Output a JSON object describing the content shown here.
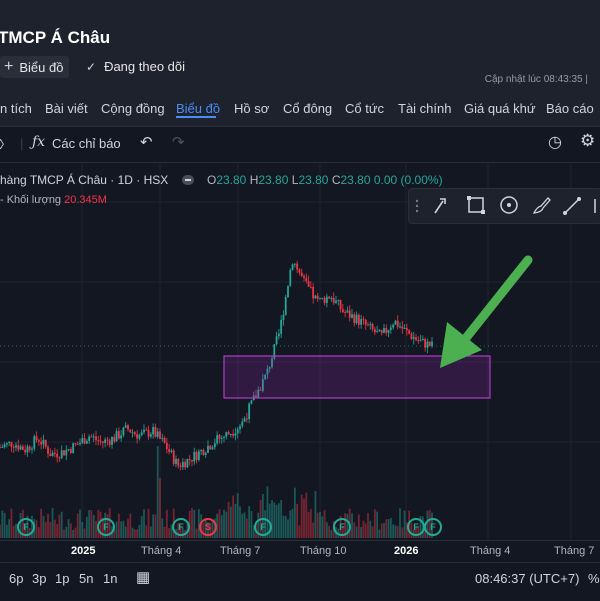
{
  "header": {
    "title": "TMCP Á Châu",
    "chart_button": "Biểu đồ",
    "follow_label": "Đang theo dõi",
    "updated_text": "Cập nhật lúc  08:43:35 |"
  },
  "tabs": [
    "n tích",
    "Bài viết",
    "Cộng đồng",
    "Biểu đồ",
    "Hồ sơ",
    "Cổ đông",
    "Cổ tức",
    "Tài chính",
    "Giá quá khứ",
    "Báo cáo"
  ],
  "toolbar": {
    "indicators_label": "Các chỉ báo"
  },
  "legend": {
    "symbol": "hàng TMCP Á Châu · 1D · HSX",
    "o_key": "O",
    "o_val": "23.80",
    "h_key": "H",
    "h_val": "23.80",
    "l_key": "L",
    "l_val": "23.80",
    "c_key": "C",
    "c_val": "23.80",
    "change": "0.00 (0.00%)",
    "volume_label": "- Khối lượng",
    "volume_value": "20.345M"
  },
  "time_axis": [
    "2025",
    "Tháng 4",
    "Tháng 7",
    "Tháng 10",
    "2026",
    "Tháng 4",
    "Tháng 7"
  ],
  "bottom": {
    "ranges": [
      "6p",
      "3p",
      "1p",
      "5n",
      "1n"
    ],
    "clock": "08:46:37 (UTC+7)",
    "percent": "%"
  },
  "events": [
    "F",
    "F",
    "F",
    "S",
    "F",
    "F",
    "F",
    "F"
  ],
  "colors": {
    "up": "#26a69a",
    "down": "#f23645",
    "accent": "#4c8cf5",
    "annotation_box": "#9c27b0",
    "arrow": "#4caf50"
  },
  "chart_data": {
    "type": "candlestick",
    "title": "hàng TMCP Á Châu · 1D · HSX",
    "series": [
      {
        "name": "Khối lượng",
        "last": "20.345M"
      }
    ],
    "close_path": [
      19.4,
      19.6,
      19.3,
      19.8,
      19.1,
      19.2,
      19.5,
      19.9,
      19.6,
      19.8,
      20.2,
      19.9,
      20.1,
      19.5,
      18.6,
      18.9,
      19.3,
      19.7,
      20.0,
      20.4,
      21.5,
      22.6,
      24.4,
      27.6,
      26.5,
      25.7,
      26.0,
      25.3,
      25.0,
      24.6,
      24.2,
      24.9,
      24.4,
      24.0,
      23.8
    ]
  }
}
